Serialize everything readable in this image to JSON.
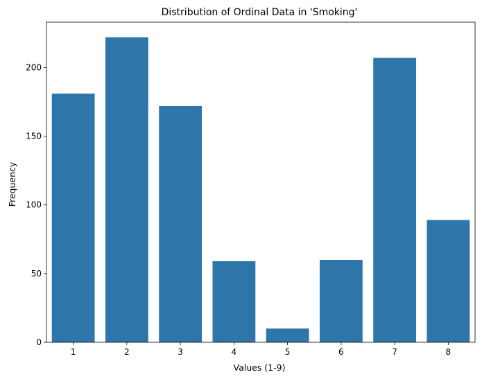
{
  "chart_data": {
    "type": "bar",
    "title": "Distribution of Ordinal Data in 'Smoking'",
    "xlabel": "Values (1-9)",
    "ylabel": "Frequency",
    "categories": [
      "1",
      "2",
      "3",
      "4",
      "5",
      "6",
      "7",
      "8"
    ],
    "values": [
      181,
      222,
      172,
      59,
      10,
      60,
      207,
      89
    ],
    "ylim": [
      0,
      233
    ],
    "yticks": [
      0,
      50,
      100,
      150,
      200
    ],
    "grid": false,
    "legend": "none",
    "bar_color": "#2e75a9"
  }
}
